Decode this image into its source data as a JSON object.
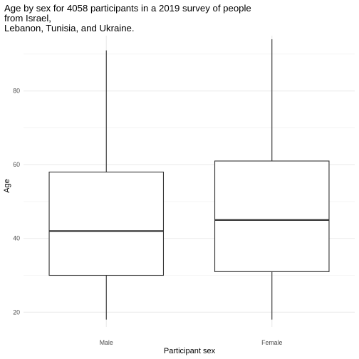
{
  "chart_data": {
    "type": "boxplot",
    "title_lines": [
      "Age by sex for 4058 participants in a 2019 survey of people",
      "from Israel,",
      "Lebanon, Tunisia, and Ukraine."
    ],
    "xlabel": "Participant sex",
    "ylabel": "Age",
    "ylim": [
      16,
      95
    ],
    "y_ticks": [
      20,
      40,
      60,
      80
    ],
    "y_tick_labels": [
      "20",
      "40",
      "60",
      "80"
    ],
    "y_minor_ticks": [
      30,
      50,
      70,
      90
    ],
    "categories": [
      "Male",
      "Female"
    ],
    "boxes": [
      {
        "category": "Male",
        "min": 18,
        "q1": 30,
        "median": 42,
        "q3": 58,
        "max": 91
      },
      {
        "category": "Female",
        "min": 18,
        "q1": 31,
        "median": 45,
        "q3": 61,
        "max": 94
      }
    ],
    "grid": true,
    "colors": {
      "grid": "#ebebeb",
      "box": "#333333",
      "text": "#4d4d4d"
    }
  }
}
